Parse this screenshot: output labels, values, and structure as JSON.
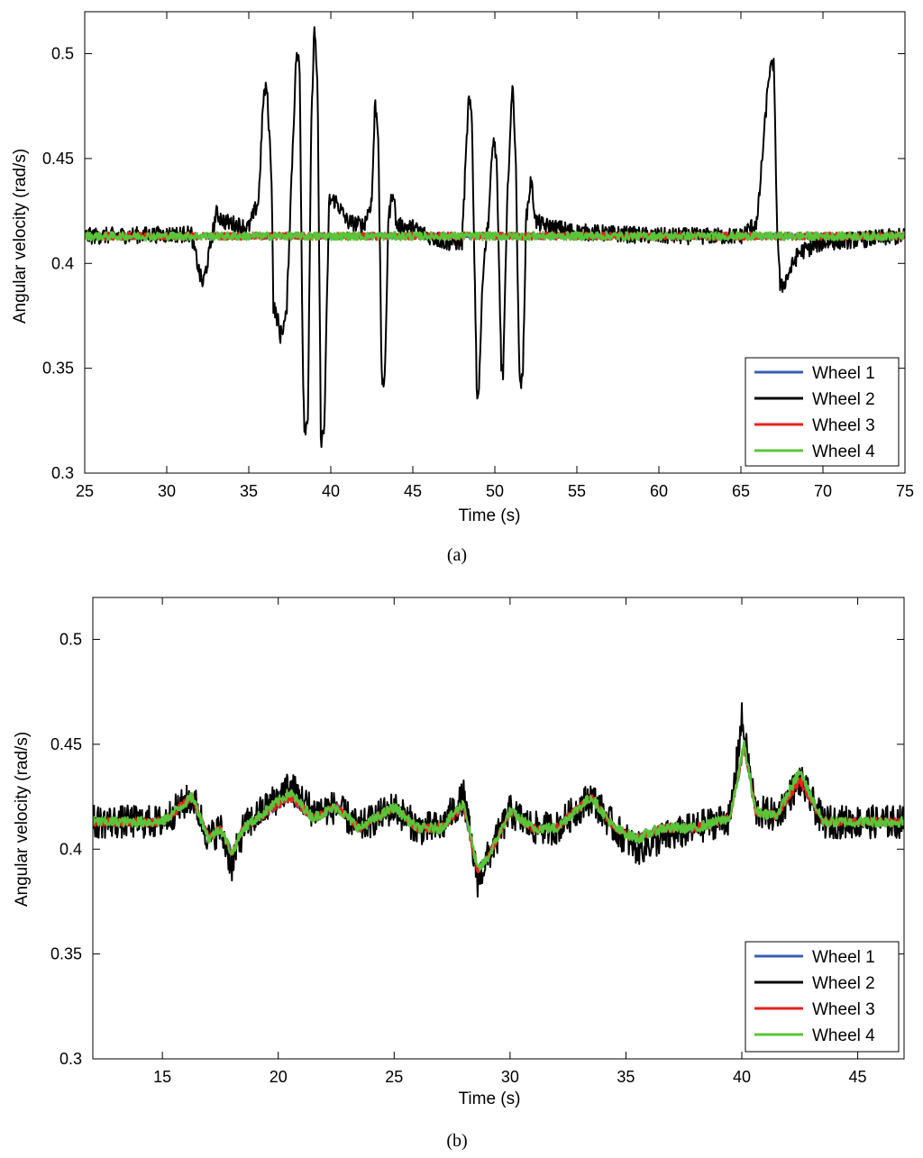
{
  "chart_data": [
    {
      "type": "line",
      "caption": "(a)",
      "xlabel": "Time (s)",
      "ylabel": "Angular velocity (rad/s)",
      "xlim": [
        25,
        75
      ],
      "ylim": [
        0.3,
        0.52
      ],
      "xticks": [
        "25",
        "30",
        "35",
        "40",
        "45",
        "50",
        "55",
        "60",
        "65",
        "70",
        "75"
      ],
      "yticks": [
        "0.3",
        "0.35",
        "0.4",
        "0.45",
        "0.5"
      ],
      "legend_position": "bottom-right",
      "grid": false,
      "series": [
        {
          "name": "Wheel 1",
          "color": "#3a5fb0",
          "baseline": 0.413,
          "noise": 0.0015,
          "points": []
        },
        {
          "name": "Wheel 2",
          "color": "#000000",
          "baseline": 0.414,
          "noise": 0.004,
          "points": [
            [
              25,
              0.413
            ],
            [
              31.5,
              0.414
            ],
            [
              32,
              0.395
            ],
            [
              32.2,
              0.39
            ],
            [
              32.6,
              0.405
            ],
            [
              33,
              0.424
            ],
            [
              33.5,
              0.42
            ],
            [
              35,
              0.417
            ],
            [
              35.6,
              0.43
            ],
            [
              35.9,
              0.48
            ],
            [
              36.1,
              0.484
            ],
            [
              36.4,
              0.44
            ],
            [
              36.5,
              0.38
            ],
            [
              36.8,
              0.372
            ],
            [
              36.9,
              0.365
            ],
            [
              37.3,
              0.375
            ],
            [
              37.6,
              0.44
            ],
            [
              37.9,
              0.5
            ],
            [
              38.1,
              0.495
            ],
            [
              38.3,
              0.35
            ],
            [
              38.4,
              0.321
            ],
            [
              38.6,
              0.325
            ],
            [
              38.8,
              0.46
            ],
            [
              39.0,
              0.515
            ],
            [
              39.2,
              0.48
            ],
            [
              39.4,
              0.315
            ],
            [
              39.6,
              0.32
            ],
            [
              39.9,
              0.43
            ],
            [
              40.3,
              0.43
            ],
            [
              41,
              0.42
            ],
            [
              42,
              0.418
            ],
            [
              42.5,
              0.43
            ],
            [
              42.7,
              0.477
            ],
            [
              42.9,
              0.462
            ],
            [
              43.1,
              0.345
            ],
            [
              43.3,
              0.343
            ],
            [
              43.5,
              0.42
            ],
            [
              43.8,
              0.436
            ],
            [
              44,
              0.418
            ],
            [
              45,
              0.417
            ],
            [
              46,
              0.413
            ],
            [
              47,
              0.41
            ],
            [
              48,
              0.41
            ],
            [
              48.4,
              0.478
            ],
            [
              48.6,
              0.47
            ],
            [
              48.9,
              0.34
            ],
            [
              49.0,
              0.336
            ],
            [
              49.3,
              0.4
            ],
            [
              49.6,
              0.42
            ],
            [
              49.9,
              0.46
            ],
            [
              50.1,
              0.45
            ],
            [
              50.4,
              0.35
            ],
            [
              50.5,
              0.347
            ],
            [
              50.8,
              0.44
            ],
            [
              51.1,
              0.488
            ],
            [
              51.3,
              0.44
            ],
            [
              51.5,
              0.345
            ],
            [
              51.7,
              0.343
            ],
            [
              51.9,
              0.42
            ],
            [
              52.2,
              0.44
            ],
            [
              52.5,
              0.42
            ],
            [
              53,
              0.418
            ],
            [
              55,
              0.415
            ],
            [
              60,
              0.413
            ],
            [
              63,
              0.413
            ],
            [
              65,
              0.413
            ],
            [
              66,
              0.42
            ],
            [
              66.7,
              0.49
            ],
            [
              67.0,
              0.496
            ],
            [
              67.2,
              0.42
            ],
            [
              67.4,
              0.388
            ],
            [
              67.6,
              0.39
            ],
            [
              68.5,
              0.405
            ],
            [
              70,
              0.41
            ],
            [
              75,
              0.413
            ]
          ]
        },
        {
          "name": "Wheel 3",
          "color": "#e8221c",
          "baseline": 0.413,
          "noise": 0.0018,
          "points": []
        },
        {
          "name": "Wheel 4",
          "color": "#5ac43a",
          "baseline": 0.413,
          "noise": 0.002,
          "points": []
        }
      ]
    },
    {
      "type": "line",
      "caption": "(b)",
      "xlabel": "Time (s)",
      "ylabel": "Angular velocity (rad/s)",
      "xlim": [
        12,
        47
      ],
      "ylim": [
        0.3,
        0.52
      ],
      "xticks": [
        "15",
        "20",
        "25",
        "30",
        "35",
        "40",
        "45"
      ],
      "yticks": [
        "0.3",
        "0.35",
        "0.4",
        "0.45",
        "0.5"
      ],
      "legend_position": "bottom-right",
      "grid": false,
      "series": [
        {
          "name": "Wheel 1",
          "color": "#3a5fb0",
          "noise": 0.002,
          "points": [
            [
              12,
              0.413
            ],
            [
              15,
              0.413
            ],
            [
              16.3,
              0.425
            ],
            [
              17,
              0.405
            ],
            [
              17.5,
              0.41
            ],
            [
              18,
              0.398
            ],
            [
              18.5,
              0.41
            ],
            [
              20.5,
              0.425
            ],
            [
              21.5,
              0.415
            ],
            [
              22.5,
              0.42
            ],
            [
              23.5,
              0.41
            ],
            [
              25,
              0.42
            ],
            [
              26,
              0.41
            ],
            [
              27,
              0.41
            ],
            [
              28,
              0.42
            ],
            [
              28.6,
              0.39
            ],
            [
              29,
              0.395
            ],
            [
              30,
              0.418
            ],
            [
              31,
              0.41
            ],
            [
              32,
              0.41
            ],
            [
              33.5,
              0.425
            ],
            [
              34.5,
              0.41
            ],
            [
              35.5,
              0.405
            ],
            [
              36.5,
              0.41
            ],
            [
              38,
              0.41
            ],
            [
              39.5,
              0.415
            ],
            [
              40.1,
              0.449
            ],
            [
              40.6,
              0.418
            ],
            [
              41.5,
              0.416
            ],
            [
              42.5,
              0.433
            ],
            [
              43.5,
              0.413
            ],
            [
              45,
              0.413
            ],
            [
              47,
              0.413
            ]
          ]
        },
        {
          "name": "Wheel 2",
          "color": "#000000",
          "noise": 0.008,
          "points": [
            [
              12,
              0.413
            ],
            [
              15,
              0.413
            ],
            [
              16.3,
              0.425
            ],
            [
              17,
              0.405
            ],
            [
              17.5,
              0.41
            ],
            [
              18,
              0.392
            ],
            [
              18.5,
              0.41
            ],
            [
              20.5,
              0.43
            ],
            [
              21.5,
              0.418
            ],
            [
              22.5,
              0.42
            ],
            [
              23.5,
              0.41
            ],
            [
              25,
              0.42
            ],
            [
              26,
              0.41
            ],
            [
              27,
              0.41
            ],
            [
              28,
              0.425
            ],
            [
              28.6,
              0.385
            ],
            [
              29,
              0.395
            ],
            [
              30,
              0.418
            ],
            [
              31,
              0.41
            ],
            [
              32,
              0.41
            ],
            [
              33.5,
              0.425
            ],
            [
              34.5,
              0.41
            ],
            [
              35.5,
              0.4
            ],
            [
              36.5,
              0.405
            ],
            [
              38,
              0.41
            ],
            [
              39.5,
              0.415
            ],
            [
              40.0,
              0.462
            ],
            [
              40.6,
              0.418
            ],
            [
              41.5,
              0.416
            ],
            [
              42.5,
              0.433
            ],
            [
              43.5,
              0.413
            ],
            [
              45,
              0.413
            ],
            [
              47,
              0.413
            ]
          ]
        },
        {
          "name": "Wheel 3",
          "color": "#e8221c",
          "noise": 0.002,
          "points": [
            [
              12,
              0.413
            ],
            [
              15,
              0.413
            ],
            [
              16.3,
              0.425
            ],
            [
              17,
              0.405
            ],
            [
              17.5,
              0.41
            ],
            [
              18,
              0.398
            ],
            [
              18.5,
              0.41
            ],
            [
              20.5,
              0.425
            ],
            [
              21.5,
              0.415
            ],
            [
              22.5,
              0.42
            ],
            [
              23.5,
              0.41
            ],
            [
              25,
              0.42
            ],
            [
              26,
              0.41
            ],
            [
              27,
              0.41
            ],
            [
              28,
              0.42
            ],
            [
              28.6,
              0.39
            ],
            [
              29,
              0.395
            ],
            [
              30,
              0.418
            ],
            [
              31,
              0.41
            ],
            [
              32,
              0.41
            ],
            [
              33.5,
              0.425
            ],
            [
              34.5,
              0.41
            ],
            [
              35.5,
              0.405
            ],
            [
              36.5,
              0.41
            ],
            [
              38,
              0.41
            ],
            [
              39.5,
              0.415
            ],
            [
              40.1,
              0.449
            ],
            [
              40.6,
              0.418
            ],
            [
              41.5,
              0.416
            ],
            [
              42.5,
              0.433
            ],
            [
              43.5,
              0.413
            ],
            [
              45,
              0.413
            ],
            [
              47,
              0.413
            ]
          ]
        },
        {
          "name": "Wheel 4",
          "color": "#5ac43a",
          "noise": 0.0025,
          "points": [
            [
              12,
              0.413
            ],
            [
              15,
              0.413
            ],
            [
              16.3,
              0.425
            ],
            [
              17,
              0.405
            ],
            [
              17.5,
              0.41
            ],
            [
              18,
              0.398
            ],
            [
              18.5,
              0.41
            ],
            [
              20.5,
              0.427
            ],
            [
              21.5,
              0.415
            ],
            [
              22.5,
              0.42
            ],
            [
              23.5,
              0.41
            ],
            [
              25,
              0.42
            ],
            [
              26,
              0.41
            ],
            [
              27,
              0.41
            ],
            [
              28,
              0.422
            ],
            [
              28.6,
              0.39
            ],
            [
              29,
              0.395
            ],
            [
              30,
              0.418
            ],
            [
              31,
              0.41
            ],
            [
              32,
              0.41
            ],
            [
              33.5,
              0.425
            ],
            [
              34.5,
              0.41
            ],
            [
              35.5,
              0.405
            ],
            [
              36.5,
              0.41
            ],
            [
              38,
              0.41
            ],
            [
              39.5,
              0.415
            ],
            [
              40.1,
              0.45
            ],
            [
              40.6,
              0.418
            ],
            [
              41.5,
              0.416
            ],
            [
              42.5,
              0.437
            ],
            [
              43.5,
              0.413
            ],
            [
              45,
              0.413
            ],
            [
              47,
              0.413
            ]
          ]
        }
      ]
    }
  ]
}
